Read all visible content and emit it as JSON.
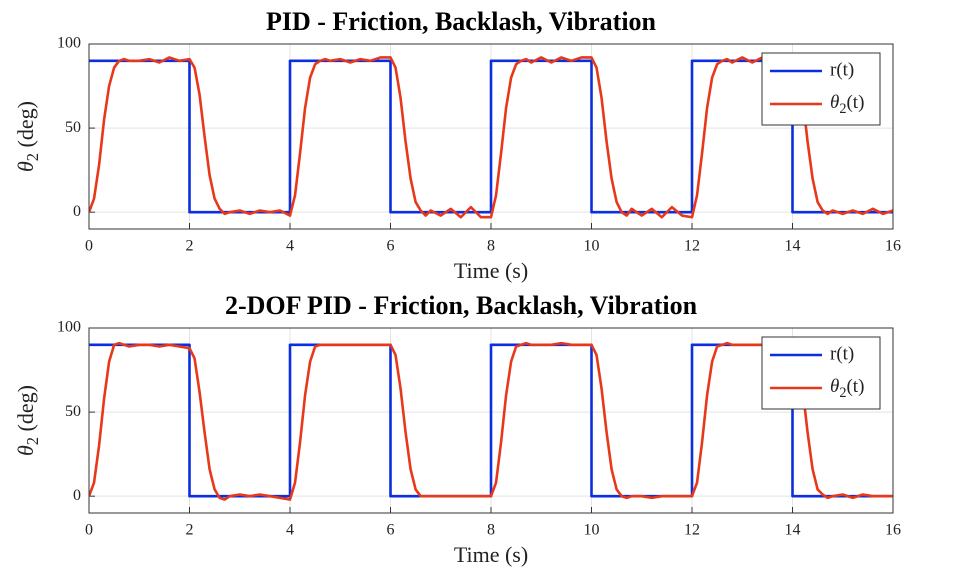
{
  "chart_data": [
    {
      "type": "line",
      "title": "PID - Friction, Backlash, Vibration",
      "x_label": "Time (s)",
      "y_label": "θ2 (deg)",
      "x": [
        0,
        0.1,
        0.2,
        0.3,
        0.4,
        0.5,
        0.6,
        0.7,
        0.8,
        1,
        1.2,
        1.4,
        1.6,
        1.8,
        2,
        2,
        2.1,
        2.2,
        2.3,
        2.4,
        2.5,
        2.6,
        2.7,
        2.8,
        3,
        3.2,
        3.4,
        3.6,
        3.8,
        4,
        4,
        4.1,
        4.2,
        4.3,
        4.4,
        4.5,
        4.6,
        4.7,
        4.8,
        5,
        5.2,
        5.4,
        5.6,
        5.8,
        6,
        6,
        6.1,
        6.2,
        6.3,
        6.4,
        6.5,
        6.6,
        6.7,
        6.8,
        7,
        7.2,
        7.4,
        7.6,
        7.8,
        8,
        8,
        8.1,
        8.2,
        8.3,
        8.4,
        8.5,
        8.6,
        8.7,
        8.8,
        9,
        9.2,
        9.4,
        9.6,
        9.8,
        10,
        10,
        10.1,
        10.2,
        10.3,
        10.4,
        10.5,
        10.6,
        10.7,
        10.8,
        11,
        11.2,
        11.4,
        11.6,
        11.8,
        12,
        12,
        12.1,
        12.2,
        12.3,
        12.4,
        12.5,
        12.6,
        12.7,
        12.8,
        13,
        13.2,
        13.4,
        13.6,
        13.8,
        14,
        14,
        14.1,
        14.2,
        14.3,
        14.4,
        14.5,
        14.6,
        14.7,
        14.8,
        15,
        15.2,
        15.4,
        15.6,
        15.8,
        16
      ],
      "series": [
        {
          "name": "r(t)",
          "color": "#0a2ee0",
          "values": [
            90,
            90,
            90,
            90,
            90,
            90,
            90,
            90,
            90,
            90,
            90,
            90,
            90,
            90,
            90,
            0,
            0,
            0,
            0,
            0,
            0,
            0,
            0,
            0,
            0,
            0,
            0,
            0,
            0,
            0,
            90,
            90,
            90,
            90,
            90,
            90,
            90,
            90,
            90,
            90,
            90,
            90,
            90,
            90,
            90,
            0,
            0,
            0,
            0,
            0,
            0,
            0,
            0,
            0,
            0,
            0,
            0,
            0,
            0,
            0,
            90,
            90,
            90,
            90,
            90,
            90,
            90,
            90,
            90,
            90,
            90,
            90,
            90,
            90,
            90,
            0,
            0,
            0,
            0,
            0,
            0,
            0,
            0,
            0,
            0,
            0,
            0,
            0,
            0,
            0,
            90,
            90,
            90,
            90,
            90,
            90,
            90,
            90,
            90,
            90,
            90,
            90,
            90,
            90,
            90,
            0,
            0,
            0,
            0,
            0,
            0,
            0,
            0,
            0,
            0,
            0,
            0,
            0,
            0,
            0
          ]
        },
        {
          "name": "θ2(t)",
          "color": "#e8381a",
          "values": [
            0,
            8,
            28,
            55,
            75,
            86,
            90,
            91,
            90,
            90,
            91,
            89,
            92,
            90,
            91,
            91,
            86,
            70,
            45,
            22,
            8,
            2,
            -1,
            0,
            1,
            -1,
            1,
            0,
            1,
            -2,
            -2,
            10,
            35,
            62,
            80,
            88,
            90,
            91,
            90,
            91,
            89,
            91,
            90,
            92,
            92,
            92,
            86,
            68,
            42,
            20,
            6,
            1,
            -2,
            1,
            -2,
            2,
            -3,
            3,
            -3,
            -3,
            -3,
            10,
            35,
            62,
            80,
            88,
            90,
            91,
            89,
            92,
            89,
            92,
            90,
            92,
            92,
            92,
            86,
            68,
            42,
            20,
            6,
            0,
            -2,
            2,
            -2,
            2,
            -3,
            3,
            -2,
            -3,
            -3,
            10,
            35,
            62,
            80,
            88,
            90,
            91,
            89,
            92,
            89,
            92,
            90,
            92,
            91,
            91,
            86,
            68,
            42,
            20,
            6,
            1,
            -1,
            1,
            -1,
            1,
            -1,
            2,
            -1,
            1
          ]
        }
      ],
      "xlim": [
        0,
        16
      ],
      "xticks": [
        0,
        2,
        4,
        6,
        8,
        10,
        12,
        14,
        16
      ],
      "ylim": [
        -10,
        100
      ],
      "yticks": [
        0,
        50,
        100
      ],
      "grid": true,
      "legend": "northeast"
    },
    {
      "type": "line",
      "title": "2-DOF PID - Friction, Backlash, Vibration",
      "x_label": "Time (s)",
      "y_label": "θ2 (deg)",
      "x": [
        0,
        0.1,
        0.2,
        0.3,
        0.4,
        0.5,
        0.6,
        0.7,
        0.8,
        1,
        1.2,
        1.4,
        1.6,
        1.8,
        2,
        2,
        2.1,
        2.2,
        2.3,
        2.4,
        2.5,
        2.6,
        2.7,
        2.8,
        3,
        3.2,
        3.4,
        3.6,
        3.8,
        4,
        4,
        4.1,
        4.2,
        4.3,
        4.4,
        4.5,
        4.6,
        4.7,
        4.8,
        5,
        5.2,
        5.4,
        5.6,
        5.8,
        6,
        6,
        6.1,
        6.2,
        6.3,
        6.4,
        6.5,
        6.6,
        6.7,
        6.8,
        7,
        7.2,
        7.4,
        7.6,
        7.8,
        8,
        8,
        8.1,
        8.2,
        8.3,
        8.4,
        8.5,
        8.6,
        8.7,
        8.8,
        9,
        9.2,
        9.4,
        9.6,
        9.8,
        10,
        10,
        10.1,
        10.2,
        10.3,
        10.4,
        10.5,
        10.6,
        10.7,
        10.8,
        11,
        11.2,
        11.4,
        11.6,
        11.8,
        12,
        12,
        12.1,
        12.2,
        12.3,
        12.4,
        12.5,
        12.6,
        12.7,
        12.8,
        13,
        13.2,
        13.4,
        13.6,
        13.8,
        14,
        14,
        14.1,
        14.2,
        14.3,
        14.4,
        14.5,
        14.6,
        14.7,
        14.8,
        15,
        15.2,
        15.4,
        15.6,
        15.8,
        16
      ],
      "series": [
        {
          "name": "r(t)",
          "color": "#0a2ee0",
          "values": [
            90,
            90,
            90,
            90,
            90,
            90,
            90,
            90,
            90,
            90,
            90,
            90,
            90,
            90,
            90,
            0,
            0,
            0,
            0,
            0,
            0,
            0,
            0,
            0,
            0,
            0,
            0,
            0,
            0,
            0,
            90,
            90,
            90,
            90,
            90,
            90,
            90,
            90,
            90,
            90,
            90,
            90,
            90,
            90,
            90,
            0,
            0,
            0,
            0,
            0,
            0,
            0,
            0,
            0,
            0,
            0,
            0,
            0,
            0,
            0,
            90,
            90,
            90,
            90,
            90,
            90,
            90,
            90,
            90,
            90,
            90,
            90,
            90,
            90,
            90,
            0,
            0,
            0,
            0,
            0,
            0,
            0,
            0,
            0,
            0,
            0,
            0,
            0,
            0,
            0,
            90,
            90,
            90,
            90,
            90,
            90,
            90,
            90,
            90,
            90,
            90,
            90,
            90,
            90,
            90,
            0,
            0,
            0,
            0,
            0,
            0,
            0,
            0,
            0,
            0,
            0,
            0,
            0,
            0,
            0
          ]
        },
        {
          "name": "θ2(t)",
          "color": "#e8381a",
          "values": [
            0,
            8,
            30,
            58,
            80,
            90,
            91,
            90,
            89,
            90,
            90,
            89,
            90,
            89,
            88,
            88,
            82,
            62,
            38,
            16,
            4,
            -1,
            -2,
            0,
            1,
            0,
            1,
            0,
            -1,
            -2,
            -2,
            8,
            32,
            60,
            80,
            89,
            90,
            90,
            90,
            90,
            90,
            90,
            90,
            90,
            90,
            90,
            84,
            64,
            38,
            16,
            4,
            0,
            0,
            0,
            0,
            0,
            0,
            0,
            0,
            0,
            0,
            8,
            32,
            60,
            80,
            89,
            90,
            91,
            90,
            90,
            90,
            91,
            90,
            90,
            90,
            90,
            84,
            64,
            38,
            16,
            4,
            0,
            -1,
            0,
            0,
            -1,
            0,
            0,
            0,
            0,
            0,
            8,
            32,
            60,
            80,
            89,
            90,
            91,
            90,
            90,
            90,
            90,
            89,
            90,
            90,
            90,
            84,
            64,
            38,
            16,
            4,
            1,
            -1,
            0,
            1,
            -1,
            1,
            0,
            0,
            0
          ]
        }
      ],
      "xlim": [
        0,
        16
      ],
      "xticks": [
        0,
        2,
        4,
        6,
        8,
        10,
        12,
        14,
        16
      ],
      "ylim": [
        -10,
        100
      ],
      "yticks": [
        0,
        50,
        100
      ],
      "grid": true,
      "legend": "northeast"
    }
  ]
}
